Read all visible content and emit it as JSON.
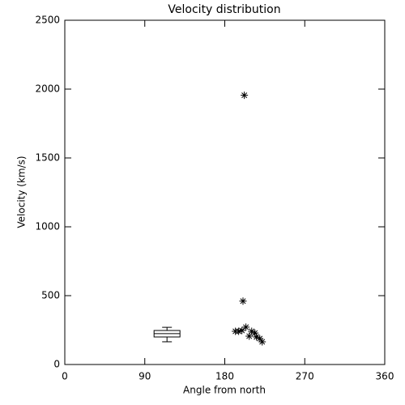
{
  "chart_data": {
    "type": "scatter",
    "title": "Velocity distribution",
    "x_label": "Angle from north",
    "y_label": "Velocity (km/s)",
    "color": "#000000",
    "marker": "asterisk",
    "x": [
      202,
      200.5,
      192,
      195.6,
      199.3,
      203.8,
      207.5,
      210.3,
      213.9,
      215.7,
      219.4,
      222.1
    ],
    "y": [
      1955,
      460,
      241,
      241,
      247,
      271,
      206,
      241,
      229,
      200,
      188,
      165
    ],
    "box": {
      "position": 115,
      "min": 165,
      "q1": 200,
      "median": 224,
      "q3": 247,
      "max": 270
    },
    "xlim": [
      0,
      360
    ],
    "xticks": [
      0,
      90,
      180,
      270,
      360
    ],
    "ylim": [
      0,
      2500
    ],
    "yticks": [
      0,
      500,
      1000,
      1500,
      2000,
      2500
    ]
  }
}
